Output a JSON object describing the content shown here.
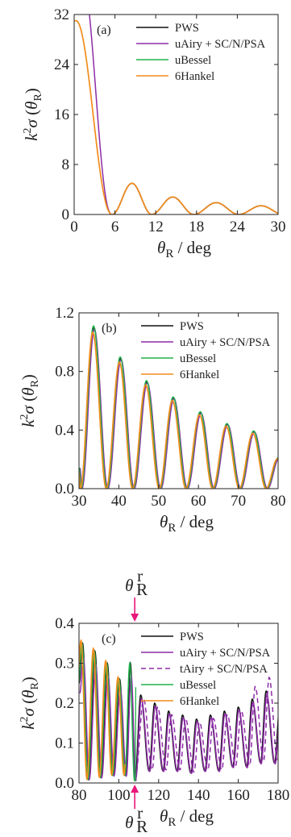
{
  "colors": {
    "PWS": "#111111",
    "uAiry": "#8e2ca8",
    "tAiry": "#8e2ca8",
    "uBessel": "#22b24c",
    "6Hankel": "#f28c1c",
    "marker": "#e8177a"
  },
  "chart_data": [
    {
      "type": "line",
      "panel": "(a)",
      "xlabel_main": "θ",
      "xlabel_sub": "R",
      "xlabel_unit": " / deg",
      "ylabel_k": "k",
      "ylabel_sup": "2",
      "ylabel_sigma": "σ (θ",
      "ylabel_sub": "R",
      "ylabel_close": ")",
      "xlim": [
        0,
        30
      ],
      "ylim": [
        0,
        32
      ],
      "xticks": [
        0,
        6,
        12,
        18,
        24,
        30
      ],
      "yticks": [
        0,
        8,
        16,
        24,
        32
      ],
      "legend_placement": "top-right",
      "series": [
        {
          "name": "PWS",
          "color_key": "PWS"
        },
        {
          "name": "uAiry + SC/N/PSA",
          "color_key": "uAiry"
        },
        {
          "name": "uBessel",
          "color_key": "uBessel"
        },
        {
          "name": "6Hankel",
          "color_key": "6Hankel"
        }
      ],
      "curve": {
        "zeros": [
          5.6,
          11.4,
          17.6,
          24.2
        ],
        "peaks": [
          [
            0.3,
            31.0
          ],
          [
            8.2,
            5.0
          ],
          [
            14.5,
            2.8
          ],
          [
            20.8,
            1.9
          ],
          [
            27.4,
            1.4
          ]
        ]
      }
    },
    {
      "type": "line",
      "panel": "(b)",
      "xlabel_main": "θ",
      "xlabel_sub": "R",
      "xlabel_unit": " / deg",
      "ylabel_k": "k",
      "ylabel_sup": "2",
      "ylabel_sigma": "σ (θ",
      "ylabel_sub": "R",
      "ylabel_close": ")",
      "xlim": [
        30,
        80
      ],
      "ylim": [
        0,
        1.2
      ],
      "xticks": [
        30,
        40,
        50,
        60,
        70,
        80
      ],
      "yticks": [
        "0.0",
        "0.4",
        "0.8",
        "1.2"
      ],
      "legend_placement": "top-right",
      "series": [
        {
          "name": "PWS",
          "color_key": "PWS"
        },
        {
          "name": "uAiry + SC/N/PSA",
          "color_key": "uAiry"
        },
        {
          "name": "uBessel",
          "color_key": "uBessel"
        },
        {
          "name": "6Hankel",
          "color_key": "6Hankel"
        }
      ],
      "curve": {
        "minima": [
          [
            30.0,
            0.14
          ],
          [
            30.5,
            0.0
          ],
          [
            37.0,
            0.0
          ],
          [
            43.6,
            0.0
          ],
          [
            50.3,
            0.0
          ],
          [
            57.0,
            0.0
          ],
          [
            63.7,
            0.0
          ],
          [
            70.4,
            0.0
          ],
          [
            77.1,
            0.0
          ]
        ],
        "peaks": [
          [
            33.6,
            1.1
          ],
          [
            40.3,
            0.89
          ],
          [
            46.9,
            0.73
          ],
          [
            53.6,
            0.62
          ],
          [
            60.4,
            0.52
          ],
          [
            67.1,
            0.44
          ],
          [
            73.8,
            0.39
          ]
        ],
        "end": [
          80.0,
          0.21
        ]
      }
    },
    {
      "type": "line",
      "panel": "(c)",
      "xlabel_main": "θ",
      "xlabel_sub": "R",
      "xlabel_unit": " / deg",
      "ylabel_k": "k",
      "ylabel_sup": "2",
      "ylabel_sigma": "σ (θ",
      "ylabel_sub": "R",
      "ylabel_close": ")",
      "xlim": [
        80,
        180
      ],
      "ylim": [
        0,
        0.4
      ],
      "xticks": [
        80,
        100,
        120,
        140,
        160,
        180
      ],
      "yticks": [
        "0.0",
        "0.1",
        "0.2",
        "0.3",
        "0.4"
      ],
      "legend_placement": "top-right",
      "series": [
        {
          "name": "PWS",
          "color_key": "PWS",
          "dash": false
        },
        {
          "name": "uAiry + SC/N/PSA",
          "color_key": "uAiry",
          "dash": false
        },
        {
          "name": "tAiry + SC/N/PSA",
          "color_key": "tAiry",
          "dash": true
        },
        {
          "name": "uBessel",
          "color_key": "uBessel",
          "dash": false
        },
        {
          "name": "6Hankel",
          "color_key": "6Hankel",
          "dash": false
        }
      ],
      "rainbow_angle": 108,
      "marker_main": "θ",
      "marker_sub": "R",
      "marker_sup": "r",
      "low_angle": {
        "minima": [
          [
            80.0,
            0.25
          ],
          [
            84.8,
            0.01
          ],
          [
            91.0,
            0.015
          ],
          [
            97.2,
            0.02
          ],
          [
            103.4,
            0.02
          ],
          [
            108.2,
            0.005
          ]
        ],
        "peaks": [
          [
            81.8,
            0.35
          ],
          [
            88.0,
            0.33
          ],
          [
            94.2,
            0.3
          ],
          [
            100.4,
            0.26
          ],
          [
            105.8,
            0.3
          ]
        ]
      },
      "high_angle": {
        "start": [
          108.2,
          0.01
        ],
        "period": 7.0,
        "peaks": [
          0.22,
          0.2,
          0.18,
          0.17,
          0.16,
          0.17,
          0.18,
          0.19,
          0.21,
          0.23,
          0.2
        ],
        "minima": [
          0.03,
          0.03,
          0.03,
          0.025,
          0.03,
          0.03,
          0.04,
          0.04,
          0.05,
          0.05,
          0.06
        ]
      }
    }
  ]
}
